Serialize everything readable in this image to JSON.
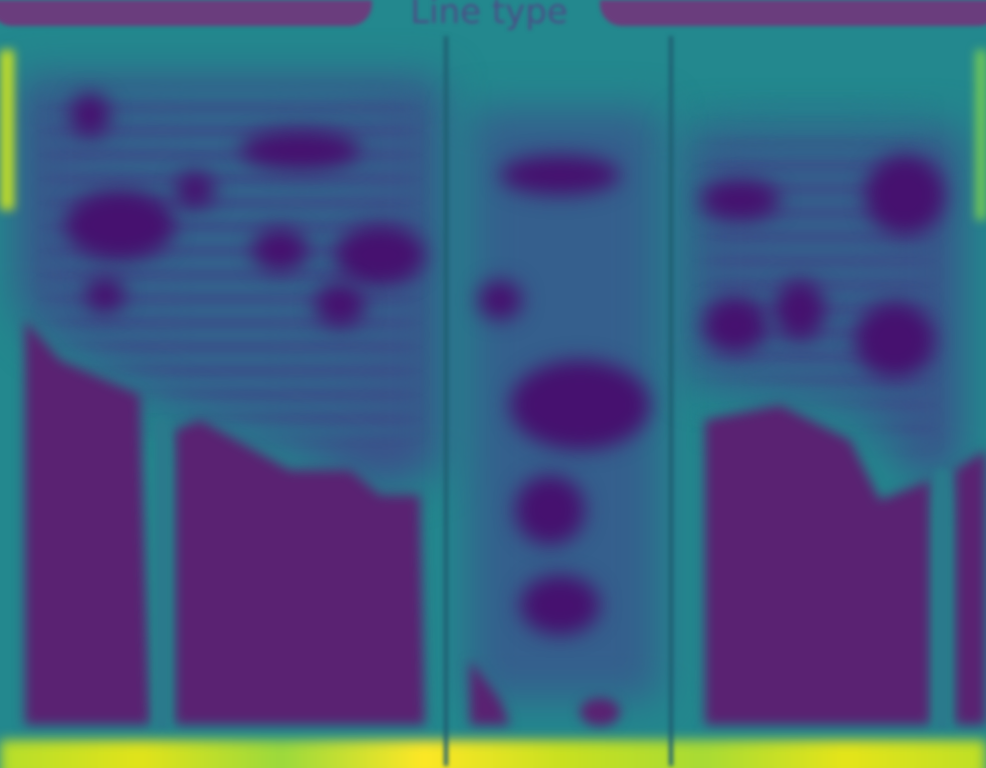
{
  "tabs": {
    "active_label": "Line type"
  },
  "colors": {
    "background": "#24868e",
    "header": "#6a3d7d",
    "low_attention": "#5a2272",
    "deep_low": "#46116f",
    "high_attention": "#fde725",
    "divider": "#1e5e71"
  },
  "icons": []
}
